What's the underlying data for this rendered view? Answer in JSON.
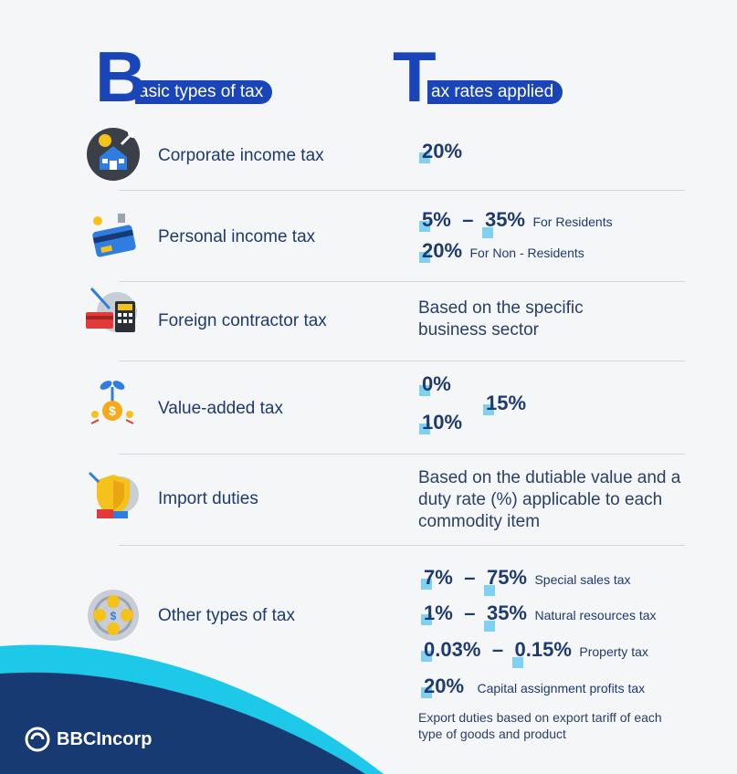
{
  "header": {
    "left_letter": "B",
    "left_rest": "asic types of tax",
    "right_letter": "T",
    "right_rest": "ax rates applied"
  },
  "rows": [
    {
      "label": "Corporate income tax",
      "icon": "house-money-icon"
    },
    {
      "label": "Personal income tax",
      "icon": "credit-card-icon"
    },
    {
      "label": "Foreign contractor tax",
      "icon": "calculator-icon"
    },
    {
      "label": "Value-added tax",
      "icon": "plant-coin-icon"
    },
    {
      "label": "Import duties",
      "icon": "shield-icon"
    },
    {
      "label": "Other types of tax",
      "icon": "coins-cycle-icon"
    }
  ],
  "rates": {
    "corporate": "20%",
    "personal_res_low": "5%",
    "personal_res_high": "35%",
    "personal_res_note": "For Residents",
    "personal_nonres": "20%",
    "personal_nonres_note": "For Non - Residents",
    "dash": "–",
    "foreign_text": "Based on the specific business sector",
    "vat_a": "0%",
    "vat_b": "10%",
    "vat_c": "15%",
    "import_text": "Based on the dutiable value and a duty rate (%) applicable to each commodity item",
    "special_low": "7%",
    "special_high": "75%",
    "special_note": "Special sales tax",
    "nat_low": "1%",
    "nat_high": "35%",
    "nat_note": "Natural resources tax",
    "prop_low": "0.03%",
    "prop_high": "0.15%",
    "prop_note": "Property tax",
    "cap": "20%",
    "cap_note": "Capital assignment profits tax",
    "export_text": "Export duties based on export tariff of each type of goods and product"
  },
  "brand": {
    "name": "BBCIncorp"
  },
  "colors": {
    "accent": "#1a45b8",
    "square": "#7fd0f2",
    "navy": "#173a72",
    "cyan": "#1ec8e8"
  }
}
